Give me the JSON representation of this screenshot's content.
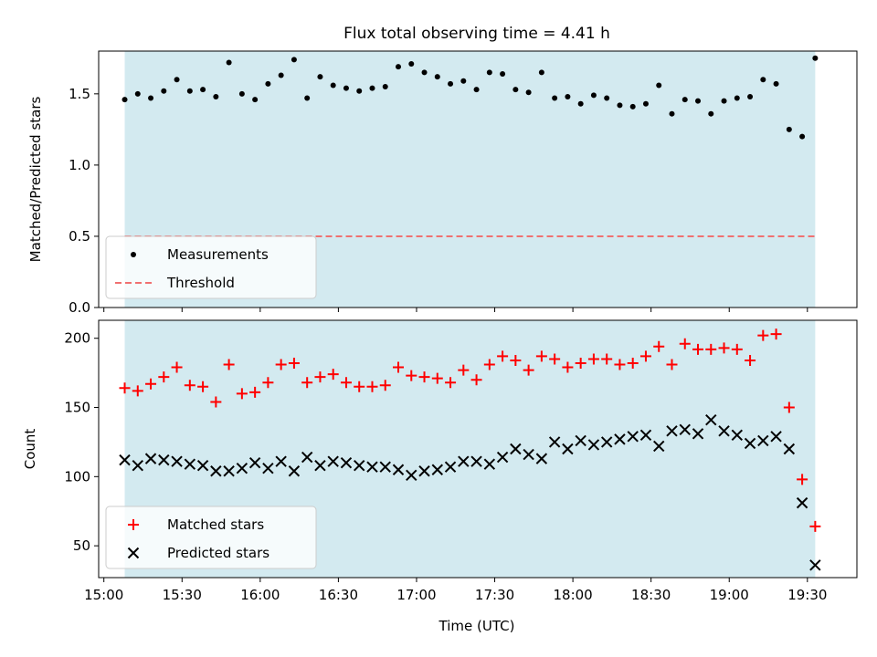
{
  "chart_data": {
    "type": "scatter",
    "title": "Flux total observing time = 4.41 h",
    "xlabel": "Time (UTC)",
    "x_ticks": [
      "15:00",
      "15:30",
      "16:00",
      "16:30",
      "17:00",
      "17:30",
      "18:00",
      "18:30",
      "19:00",
      "19:30"
    ],
    "x_range_minutes": [
      898,
      1189
    ],
    "observing_window": [
      "15:08",
      "19:33"
    ],
    "band_color": "#d3eaf0",
    "panels": [
      {
        "ylabel": "Matched/Predicted stars",
        "ylim": [
          0,
          1.8
        ],
        "yticks": [
          "0.0",
          "0.5",
          "1.0",
          "1.5"
        ],
        "legend_position": "lower-left",
        "series": [
          {
            "name": "Measurements",
            "marker": "dot",
            "color": "#000000",
            "x": [
              "15:08",
              "15:13",
              "15:18",
              "15:23",
              "15:28",
              "15:33",
              "15:38",
              "15:43",
              "15:48",
              "15:53",
              "15:58",
              "16:03",
              "16:08",
              "16:13",
              "16:18",
              "16:23",
              "16:28",
              "16:33",
              "16:38",
              "16:43",
              "16:48",
              "16:53",
              "16:58",
              "17:03",
              "17:08",
              "17:13",
              "17:18",
              "17:23",
              "17:28",
              "17:33",
              "17:38",
              "17:43",
              "17:48",
              "17:53",
              "17:58",
              "18:03",
              "18:08",
              "18:13",
              "18:18",
              "18:23",
              "18:28",
              "18:33",
              "18:38",
              "18:43",
              "18:48",
              "18:53",
              "18:58",
              "19:03",
              "19:08",
              "19:13",
              "19:18",
              "19:23",
              "19:28",
              "19:33"
            ],
            "y": [
              1.46,
              1.5,
              1.47,
              1.52,
              1.6,
              1.52,
              1.53,
              1.48,
              1.72,
              1.5,
              1.46,
              1.57,
              1.63,
              1.74,
              1.47,
              1.62,
              1.56,
              1.54,
              1.52,
              1.54,
              1.55,
              1.69,
              1.71,
              1.65,
              1.62,
              1.57,
              1.59,
              1.53,
              1.65,
              1.64,
              1.53,
              1.51,
              1.65,
              1.47,
              1.48,
              1.43,
              1.49,
              1.47,
              1.42,
              1.41,
              1.43,
              1.56,
              1.36,
              1.46,
              1.45,
              1.36,
              1.45,
              1.47,
              1.48,
              1.6,
              1.57,
              1.25,
              1.2,
              1.75
            ]
          },
          {
            "name": "Threshold",
            "type": "line",
            "style": "dashed",
            "color": "#f07070",
            "value": 0.5
          }
        ]
      },
      {
        "ylabel": "Count",
        "ylim": [
          27,
          213
        ],
        "yticks": [
          "50",
          "100",
          "150",
          "200"
        ],
        "legend_position": "lower-left",
        "series": [
          {
            "name": "Matched stars",
            "marker": "plus",
            "color": "#ff0000",
            "x": [
              "15:08",
              "15:13",
              "15:18",
              "15:23",
              "15:28",
              "15:33",
              "15:38",
              "15:43",
              "15:48",
              "15:53",
              "15:58",
              "16:03",
              "16:08",
              "16:13",
              "16:18",
              "16:23",
              "16:28",
              "16:33",
              "16:38",
              "16:43",
              "16:48",
              "16:53",
              "16:58",
              "17:03",
              "17:08",
              "17:13",
              "17:18",
              "17:23",
              "17:28",
              "17:33",
              "17:38",
              "17:43",
              "17:48",
              "17:53",
              "17:58",
              "18:03",
              "18:08",
              "18:13",
              "18:18",
              "18:23",
              "18:28",
              "18:33",
              "18:38",
              "18:43",
              "18:48",
              "18:53",
              "18:58",
              "19:03",
              "19:08",
              "19:13",
              "19:18",
              "19:23",
              "19:28",
              "19:33"
            ],
            "y": [
              164,
              162,
              167,
              172,
              179,
              166,
              165,
              154,
              181,
              160,
              161,
              168,
              181,
              182,
              168,
              172,
              174,
              168,
              165,
              165,
              166,
              179,
              173,
              172,
              171,
              168,
              177,
              170,
              181,
              187,
              184,
              177,
              187,
              185,
              179,
              182,
              185,
              185,
              181,
              182,
              187,
              194,
              181,
              196,
              192,
              192,
              193,
              192,
              184,
              202,
              203,
              150,
              98,
              64
            ]
          },
          {
            "name": "Predicted stars",
            "marker": "x",
            "color": "#000000",
            "x": [
              "15:08",
              "15:13",
              "15:18",
              "15:23",
              "15:28",
              "15:33",
              "15:38",
              "15:43",
              "15:48",
              "15:53",
              "15:58",
              "16:03",
              "16:08",
              "16:13",
              "16:18",
              "16:23",
              "16:28",
              "16:33",
              "16:38",
              "16:43",
              "16:48",
              "16:53",
              "16:58",
              "17:03",
              "17:08",
              "17:13",
              "17:18",
              "17:23",
              "17:28",
              "17:33",
              "17:38",
              "17:43",
              "17:48",
              "17:53",
              "17:58",
              "18:03",
              "18:08",
              "18:13",
              "18:18",
              "18:23",
              "18:28",
              "18:33",
              "18:38",
              "18:43",
              "18:48",
              "18:53",
              "18:58",
              "19:03",
              "19:08",
              "19:13",
              "19:18",
              "19:23",
              "19:28",
              "19:33"
            ],
            "y": [
              112,
              108,
              113,
              112,
              111,
              109,
              108,
              104,
              104,
              106,
              110,
              106,
              111,
              104,
              114,
              108,
              111,
              110,
              108,
              107,
              107,
              105,
              101,
              104,
              105,
              107,
              111,
              111,
              109,
              114,
              120,
              116,
              113,
              125,
              120,
              126,
              123,
              125,
              127,
              129,
              130,
              122,
              133,
              134,
              131,
              141,
              133,
              130,
              124,
              126,
              129,
              120,
              81,
              36
            ]
          }
        ]
      }
    ]
  }
}
